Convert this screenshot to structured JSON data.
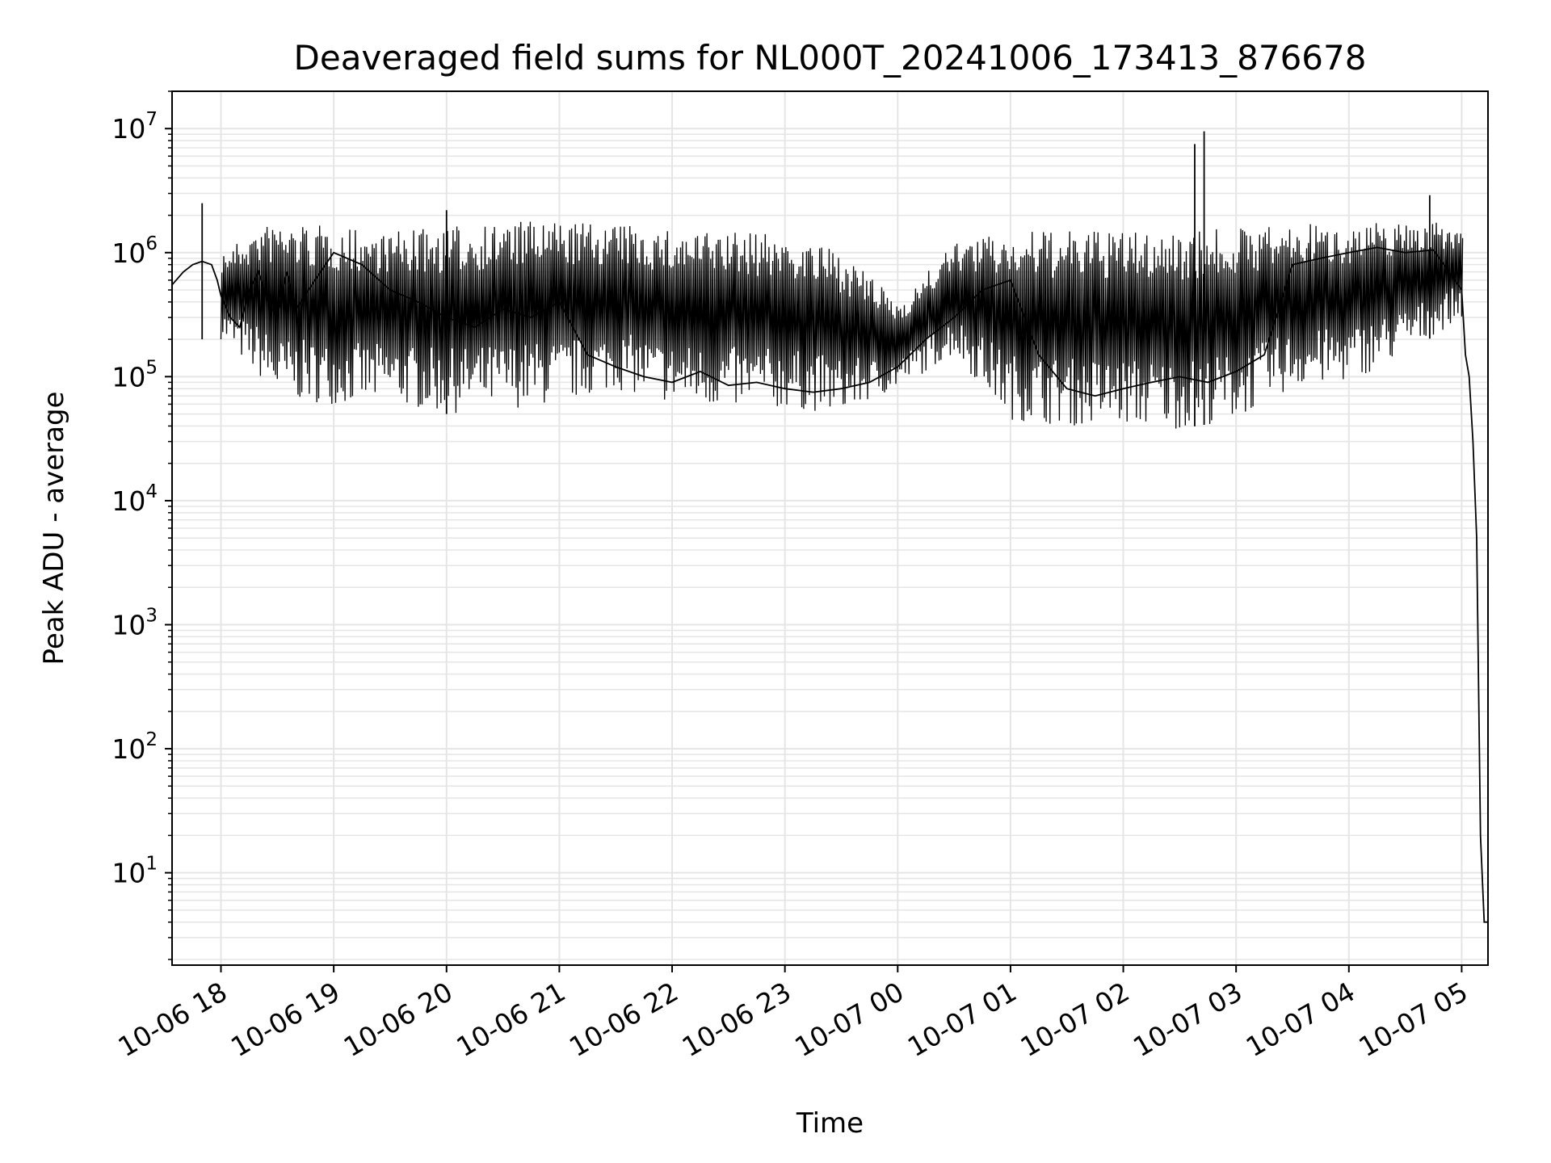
{
  "chart_data": {
    "type": "line",
    "title": "Deaveraged field sums for NL000T_20241006_173413_876678",
    "xlabel": "Time",
    "ylabel": "Peak ADU - average",
    "yscale": "log",
    "ylim": [
      1.8,
      20000000
    ],
    "xlim": [
      "2024-10-06 17:34",
      "2024-10-07 05:14"
    ],
    "grid": "major-and-minor",
    "line_color": "#000000",
    "grid_color": "#e5e5e5",
    "x_ticks": [
      {
        "label": "10-06 18",
        "t": "2024-10-06 18:00"
      },
      {
        "label": "10-06 19",
        "t": "2024-10-06 19:00"
      },
      {
        "label": "10-06 20",
        "t": "2024-10-06 20:00"
      },
      {
        "label": "10-06 21",
        "t": "2024-10-06 21:00"
      },
      {
        "label": "10-06 22",
        "t": "2024-10-06 22:00"
      },
      {
        "label": "10-06 23",
        "t": "2024-10-06 23:00"
      },
      {
        "label": "10-07 00",
        "t": "2024-10-07 00:00"
      },
      {
        "label": "10-07 01",
        "t": "2024-10-07 01:00"
      },
      {
        "label": "10-07 02",
        "t": "2024-10-07 02:00"
      },
      {
        "label": "10-07 03",
        "t": "2024-10-07 03:00"
      },
      {
        "label": "10-07 04",
        "t": "2024-10-07 04:00"
      },
      {
        "label": "10-07 05",
        "t": "2024-10-07 05:00"
      }
    ],
    "y_ticks": [
      {
        "base": "10",
        "exp": "1",
        "value": 10
      },
      {
        "base": "10",
        "exp": "2",
        "value": 100
      },
      {
        "base": "10",
        "exp": "3",
        "value": 1000
      },
      {
        "base": "10",
        "exp": "4",
        "value": 10000
      },
      {
        "base": "10",
        "exp": "5",
        "value": 100000
      },
      {
        "base": "10",
        "exp": "6",
        "value": 1000000
      },
      {
        "base": "10",
        "exp": "7",
        "value": 10000000
      }
    ],
    "series": [
      {
        "x": [
          "2024-10-06 17:34",
          "2024-10-06 17:40",
          "2024-10-06 17:45",
          "2024-10-06 17:50",
          "2024-10-06 17:55",
          "2024-10-06 17:58",
          "2024-10-06 18:00",
          "2024-10-06 18:05",
          "2024-10-06 18:10",
          "2024-10-06 18:15",
          "2024-10-06 18:20",
          "2024-10-06 18:25",
          "2024-10-06 18:30",
          "2024-10-06 18:35",
          "2024-10-06 18:40",
          "2024-10-06 18:50",
          "2024-10-06 19:00",
          "2024-10-06 19:15",
          "2024-10-06 19:30",
          "2024-10-06 19:45",
          "2024-10-06 20:00",
          "2024-10-06 20:15",
          "2024-10-06 20:30",
          "2024-10-06 20:45",
          "2024-10-06 21:00",
          "2024-10-06 21:15",
          "2024-10-06 21:30",
          "2024-10-06 21:45",
          "2024-10-06 22:00",
          "2024-10-06 22:15",
          "2024-10-06 22:30",
          "2024-10-06 22:45",
          "2024-10-06 23:00",
          "2024-10-06 23:15",
          "2024-10-06 23:30",
          "2024-10-06 23:45",
          "2024-10-07 00:00",
          "2024-10-07 00:15",
          "2024-10-07 00:30",
          "2024-10-07 00:45",
          "2024-10-07 01:00",
          "2024-10-07 01:15",
          "2024-10-07 01:30",
          "2024-10-07 01:45",
          "2024-10-07 02:00",
          "2024-10-07 02:15",
          "2024-10-07 02:30",
          "2024-10-07 02:45",
          "2024-10-07 03:00",
          "2024-10-07 03:15",
          "2024-10-07 03:30",
          "2024-10-07 03:45",
          "2024-10-07 04:00",
          "2024-10-07 04:15",
          "2024-10-07 04:30",
          "2024-10-07 04:45",
          "2024-10-07 05:00",
          "2024-10-07 05:02",
          "2024-10-07 05:04",
          "2024-10-07 05:06",
          "2024-10-07 05:08",
          "2024-10-07 05:10",
          "2024-10-07 05:12",
          "2024-10-07 05:14"
        ],
        "y": [
          550000,
          700000,
          800000,
          850000,
          800000,
          600000,
          450000,
          300000,
          250000,
          500000,
          700000,
          400000,
          300000,
          700000,
          350000,
          600000,
          1000000,
          800000,
          500000,
          400000,
          300000,
          250000,
          350000,
          300000,
          400000,
          150000,
          120000,
          100000,
          90000,
          110000,
          85000,
          90000,
          80000,
          75000,
          80000,
          90000,
          120000,
          200000,
          300000,
          500000,
          600000,
          150000,
          80000,
          70000,
          80000,
          90000,
          100000,
          90000,
          110000,
          150000,
          800000,
          900000,
          1000000,
          1100000,
          1000000,
          1050000,
          500000,
          150000,
          100000,
          30000,
          5000,
          20,
          4,
          4
        ]
      }
    ],
    "spikes": [
      {
        "x": "2024-10-06 17:50",
        "y": 2500000
      },
      {
        "x": "2024-10-06 20:00",
        "y": 2200000
      },
      {
        "x": "2024-10-07 02:38",
        "y": 7500000
      },
      {
        "x": "2024-10-07 02:43",
        "y": 9500000
      },
      {
        "x": "2024-10-07 04:43",
        "y": 2900000
      }
    ],
    "band": {
      "x": [
        "2024-10-06 18:00",
        "2024-10-06 18:20",
        "2024-10-06 18:30",
        "2024-10-06 19:00",
        "2024-10-06 19:30",
        "2024-10-06 20:00",
        "2024-10-06 20:30",
        "2024-10-06 21:00",
        "2024-10-06 21:30",
        "2024-10-06 22:00",
        "2024-10-06 22:30",
        "2024-10-06 23:00",
        "2024-10-06 23:30",
        "2024-10-07 00:00",
        "2024-10-07 00:30",
        "2024-10-07 01:00",
        "2024-10-07 01:30",
        "2024-10-07 02:00",
        "2024-10-07 02:30",
        "2024-10-07 03:00",
        "2024-10-07 03:30",
        "2024-10-07 04:00",
        "2024-10-07 04:30",
        "2024-10-07 05:00"
      ],
      "low": [
        200000,
        100000,
        65000,
        60000,
        60000,
        50000,
        55000,
        60000,
        80000,
        60000,
        55000,
        55000,
        50000,
        80000,
        150000,
        45000,
        40000,
        40000,
        38000,
        45000,
        80000,
        90000,
        150000,
        300000
      ],
      "high": [
        1000000,
        1600000,
        1800000,
        1600000,
        1500000,
        1600000,
        1800000,
        1800000,
        1700000,
        1500000,
        1500000,
        1400000,
        1000000,
        400000,
        1200000,
        1500000,
        1500000,
        1500000,
        1500000,
        1600000,
        1700000,
        1700000,
        1800000,
        1700000
      ]
    }
  }
}
